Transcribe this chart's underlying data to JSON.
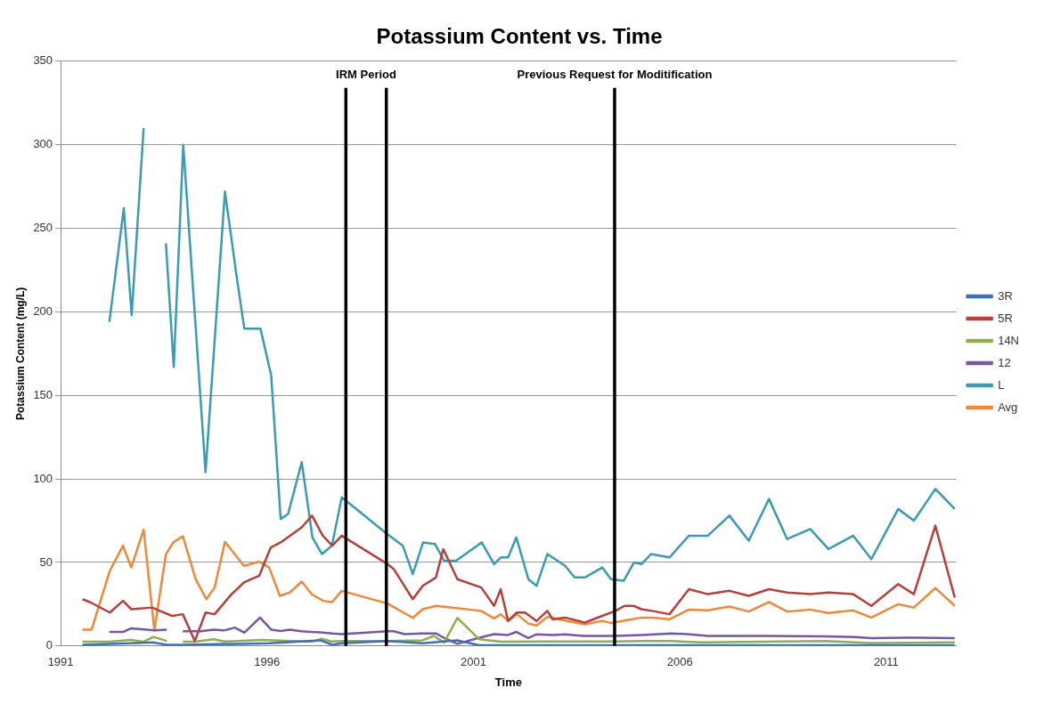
{
  "chart_data": {
    "type": "line",
    "title": "Potassium Content vs. Time",
    "xlabel": "Time",
    "ylabel": "Potassium Content (mg/L)",
    "xlim": [
      1991,
      2012.7
    ],
    "xticks": [
      1991,
      1996,
      2001,
      2006,
      2011
    ],
    "ylim": [
      0,
      350
    ],
    "yticks": [
      0,
      50,
      100,
      150,
      200,
      250,
      300,
      350
    ],
    "grid": "y",
    "legend": "right",
    "marker": "none",
    "line_style": "solid",
    "annotations": [
      "IRM Period"
    ],
    "ref_lines": [
      {
        "axis": "x",
        "value": 1997.91,
        "label": null,
        "color": "#000000"
      },
      {
        "axis": "x",
        "value": 1998.89,
        "label": null,
        "color": "#000000"
      },
      {
        "axis": "x",
        "value": 2004.42,
        "label": "Previous Request for Moditification",
        "color": "#000000"
      }
    ],
    "series": [
      {
        "name": "3R",
        "color": "#3f6fc0",
        "x": [
          1991.53,
          1992.7,
          1993.25,
          1993.57,
          1993.96,
          1996.05,
          1997.29,
          1997.58,
          1997.81,
          1998.92,
          1999.77,
          2000.61,
          2001.14,
          2005.07,
          2012.66
        ],
        "values": [
          0.7,
          1.6,
          2.1,
          0.7,
          0.7,
          1.6,
          3.4,
          0.7,
          1.6,
          3,
          1.6,
          3.4,
          0.4,
          0.4,
          0.4
        ]
      },
      {
        "name": "5R",
        "color": "#b8403c",
        "x": [
          1991.53,
          1991.73,
          1992.19,
          1992.51,
          1992.71,
          1993.22,
          1993.4,
          1993.7,
          1993.96,
          1994.25,
          1994.51,
          1994.73,
          1995.14,
          1995.44,
          1995.81,
          1996.09,
          1996.33,
          1996.84,
          1997.09,
          1997.35,
          1997.58,
          1997.81,
          1998.92,
          1999.07,
          1999.53,
          1999.77,
          2000.09,
          2000.27,
          2000.61,
          2001.19,
          2001.5,
          2001.66,
          2001.84,
          2002.05,
          2002.25,
          2002.53,
          2002.79,
          2002.92,
          2003.22,
          2003.7,
          2004.12,
          2004.44,
          2004.66,
          2004.88,
          2005.07,
          2005.33,
          2005.75,
          2006.22,
          2006.68,
          2007.2,
          2007.67,
          2008.16,
          2008.6,
          2009.16,
          2009.6,
          2010.2,
          2010.64,
          2011.29,
          2011.67,
          2012.19,
          2012.66
        ],
        "values": [
          28,
          26,
          20,
          27,
          22,
          23,
          21,
          18,
          19,
          3,
          20,
          19,
          31,
          38,
          42,
          59,
          62,
          71,
          78,
          66,
          60,
          66,
          49,
          46,
          28,
          36,
          41,
          58,
          40,
          35,
          24,
          34,
          15,
          20,
          20,
          15,
          21,
          16,
          17,
          14,
          18,
          21,
          24,
          24,
          22,
          21,
          19,
          34,
          31,
          33,
          30,
          34,
          32,
          31,
          32,
          31,
          24,
          37,
          31,
          72,
          29
        ]
      },
      {
        "name": "14N",
        "color": "#8db04e",
        "x": [
          1991.53,
          1992.18,
          1992.7,
          1993.0,
          1993.25,
          1993.57,
          1993.8,
          1993.96,
          1994.25,
          1994.7,
          1994.96,
          1995.29,
          1995.88,
          1997.07,
          1997.33,
          1997.55,
          1997.81,
          1998.92,
          1999.77,
          2000.04,
          2000.29,
          2000.61,
          2001.14,
          2001.66,
          2002.92,
          2004.4,
          2005.07,
          2005.81,
          2006.55,
          2008.03,
          2009.51,
          2010.62,
          2012.66
        ],
        "values": [
          2.5,
          2.5,
          3.6,
          2.5,
          5.4,
          3,
          null,
          2.5,
          2.5,
          4,
          2.7,
          3,
          3.6,
          2.5,
          4.3,
          2.7,
          3,
          3,
          3.4,
          6,
          2.1,
          16.8,
          4,
          2.5,
          2.7,
          2.7,
          3,
          2.9,
          2.1,
          2.5,
          2.9,
          1.8,
          2.1
        ]
      },
      {
        "name": "12",
        "color": "#7657a0",
        "x": [
          1992.18,
          1992.51,
          1992.71,
          1993.27,
          1993.57,
          1993.8,
          1993.96,
          1994.4,
          1994.7,
          1994.96,
          1995.22,
          1995.45,
          1995.83,
          1996.1,
          1996.33,
          1996.55,
          1996.84,
          1997.07,
          1997.29,
          1997.58,
          1997.81,
          1998.92,
          1999.07,
          1999.33,
          1999.77,
          2000.09,
          2000.33,
          2000.61,
          2001.19,
          2001.5,
          2001.84,
          2002.04,
          2002.33,
          2002.53,
          2002.92,
          2003.22,
          2003.66,
          2004.4,
          2005.07,
          2005.81,
          2006.18,
          2006.68,
          2008.03,
          2009.51,
          2010.24,
          2010.64,
          2011.73,
          2012.66
        ],
        "values": [
          8.4,
          8.4,
          10.6,
          9.3,
          9.7,
          null,
          8.8,
          8.8,
          9.8,
          9.3,
          11,
          8,
          17,
          9.8,
          9,
          9.8,
          8.8,
          8.4,
          8.2,
          7.5,
          7.1,
          8.8,
          8.8,
          7.1,
          7.5,
          7.5,
          4.3,
          1.3,
          5.2,
          7.1,
          6.6,
          8.4,
          4.8,
          7,
          6.6,
          7,
          6,
          6,
          6.6,
          7.5,
          7.1,
          6,
          6,
          5.7,
          5.4,
          4.7,
          5,
          4.7
        ]
      },
      {
        "name": "L",
        "color": "#3a9bb5",
        "x": [
          1992.18,
          1992.53,
          1992.72,
          1993.01,
          1993.3,
          1993.55,
          1993.74,
          1993.97,
          1994.51,
          1994.98,
          1995.27,
          1995.45,
          1995.84,
          1996.1,
          1996.33,
          1996.51,
          1996.84,
          1997.1,
          1997.33,
          1997.57,
          1997.81,
          1998.91,
          1999.29,
          1999.53,
          1999.78,
          2000.07,
          2000.29,
          2000.58,
          2001.2,
          2001.5,
          2001.66,
          2001.84,
          2002.04,
          2002.33,
          2002.53,
          2002.79,
          2003.22,
          2003.45,
          2003.7,
          2004.12,
          2004.33,
          2004.64,
          2004.89,
          2005.07,
          2005.3,
          2005.75,
          2006.22,
          2006.68,
          2007.2,
          2007.67,
          2008.16,
          2008.6,
          2009.16,
          2009.6,
          2010.2,
          2010.64,
          2011.29,
          2011.67,
          2012.19,
          2012.66
        ],
        "values": [
          194,
          262,
          198,
          310,
          null,
          241,
          167,
          300,
          104,
          272,
          220,
          190,
          190,
          162,
          76,
          79,
          110,
          65,
          55,
          60,
          89,
          67,
          60,
          43,
          62,
          61,
          51,
          51,
          62,
          49,
          53,
          53,
          65,
          40,
          36,
          55,
          48,
          41,
          41,
          47,
          40,
          39,
          50,
          49,
          55,
          53,
          66,
          66,
          78,
          63,
          88,
          64,
          70,
          58,
          66,
          52,
          82,
          75,
          94,
          82
        ]
      },
      {
        "name": "Avg",
        "color": "#f0883a",
        "x": [
          1991.53,
          1991.75,
          1992.19,
          1992.51,
          1992.71,
          1993.01,
          1993.27,
          1993.55,
          1993.73,
          1993.96,
          1994.27,
          1994.53,
          1994.73,
          1994.98,
          1995.44,
          1995.81,
          1996.05,
          1996.31,
          1996.55,
          1996.84,
          1997.09,
          1997.36,
          1997.58,
          1997.81,
          1998.92,
          1999.53,
          1999.77,
          2000.09,
          2001.19,
          2001.5,
          2001.66,
          2001.84,
          2002.05,
          2002.33,
          2002.53,
          2002.79,
          2003.22,
          2003.7,
          2004.12,
          2004.33,
          2004.66,
          2005.07,
          2005.33,
          2005.75,
          2006.22,
          2006.68,
          2007.2,
          2007.67,
          2008.16,
          2008.6,
          2009.16,
          2009.6,
          2010.2,
          2010.64,
          2011.29,
          2011.67,
          2012.19,
          2012.66
        ],
        "values": [
          9.8,
          9.8,
          45,
          60,
          47,
          69.6,
          9.3,
          55,
          62,
          65.7,
          40,
          28,
          35,
          62.4,
          48,
          50.5,
          47,
          30,
          32,
          38.5,
          30.8,
          27,
          26.3,
          33,
          25.4,
          16.8,
          22,
          24,
          21,
          16.5,
          19,
          15,
          19,
          13.4,
          12.3,
          17.4,
          15.2,
          12.9,
          15,
          13.8,
          15.2,
          17,
          17,
          16,
          21.8,
          21.3,
          23.6,
          20.6,
          26.3,
          20.6,
          21.8,
          19.7,
          21.3,
          17,
          25,
          23,
          34.7,
          24
        ]
      }
    ]
  }
}
